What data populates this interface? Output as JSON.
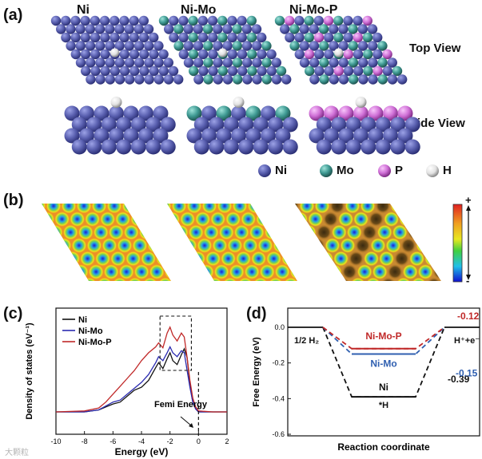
{
  "panel_labels": {
    "a": "(a)",
    "b": "(b)",
    "c": "(c)",
    "d": "(d)"
  },
  "panel_a": {
    "models": [
      "Ni",
      "Ni-Mo",
      "Ni-Mo-P"
    ],
    "top_view": "Top View",
    "side_view": "Side View",
    "legend": [
      {
        "label": "Ni",
        "color": "#5a60b0"
      },
      {
        "label": "Mo",
        "color": "#3f9a93"
      },
      {
        "label": "P",
        "color": "#cf6fd6"
      },
      {
        "label": "H",
        "color": "#e9e9e9"
      }
    ]
  },
  "panel_b": {
    "scale_plus": "+",
    "scale_minus": "-"
  },
  "watermark": "大颗粒",
  "chart_data": [
    {
      "type": "line",
      "title": "(c)",
      "xlabel": "Energy (eV)",
      "ylabel": "Density of states (eV⁻¹)",
      "xlim": [
        -10,
        2
      ],
      "x_ticks": [
        -10,
        -8,
        -6,
        -4,
        -2,
        0,
        2
      ],
      "annotation": "Femi Energy",
      "legend": [
        "Ni",
        "Ni-Mo",
        "Ni-Mo-P"
      ],
      "series": [
        {
          "name": "Ni",
          "color": "#111111",
          "x": [
            -10,
            -8,
            -7,
            -6.5,
            -6,
            -5.5,
            -5,
            -4.5,
            -4,
            -3.5,
            -3,
            -2.8,
            -2.5,
            -2.2,
            -2,
            -1.8,
            -1.5,
            -1.2,
            -1,
            -0.8,
            -0.6,
            -0.4,
            -0.2,
            0,
            1,
            2
          ],
          "y": [
            0,
            0,
            0.02,
            0.05,
            0.08,
            0.1,
            0.16,
            0.22,
            0.25,
            0.32,
            0.45,
            0.5,
            0.44,
            0.54,
            0.6,
            0.52,
            0.48,
            0.58,
            0.64,
            0.55,
            0.28,
            0.1,
            0.03,
            0,
            0,
            0
          ]
        },
        {
          "name": "Ni-Mo",
          "color": "#2a2ab0",
          "x": [
            -10,
            -8,
            -7,
            -6.5,
            -6,
            -5.5,
            -5,
            -4.5,
            -4,
            -3.5,
            -3,
            -2.8,
            -2.5,
            -2.2,
            -2,
            -1.8,
            -1.5,
            -1.2,
            -1,
            -0.8,
            -0.6,
            -0.4,
            -0.2,
            0,
            1,
            2
          ],
          "y": [
            0,
            0,
            0.02,
            0.06,
            0.1,
            0.12,
            0.18,
            0.24,
            0.3,
            0.38,
            0.5,
            0.56,
            0.52,
            0.6,
            0.66,
            0.6,
            0.56,
            0.62,
            0.6,
            0.42,
            0.25,
            0.1,
            0.03,
            0,
            0,
            0
          ]
        },
        {
          "name": "Ni-Mo-P",
          "color": "#c02828",
          "x": [
            -10,
            -8,
            -7,
            -6.5,
            -6,
            -5.5,
            -5,
            -4.5,
            -4,
            -3.5,
            -3,
            -2.8,
            -2.5,
            -2.2,
            -2,
            -1.8,
            -1.5,
            -1.2,
            -1,
            -0.8,
            -0.6,
            -0.4,
            -0.2,
            0,
            1,
            2
          ],
          "y": [
            0,
            0.01,
            0.04,
            0.1,
            0.18,
            0.26,
            0.34,
            0.42,
            0.52,
            0.6,
            0.66,
            0.7,
            0.65,
            0.8,
            0.86,
            0.78,
            0.72,
            0.8,
            0.76,
            0.55,
            0.32,
            0.14,
            0.05,
            0.01,
            0,
            0
          ]
        }
      ]
    },
    {
      "type": "line",
      "title": "(d)",
      "xlabel": "Reaction  coordinate",
      "ylabel": "Free Energy (eV)",
      "ylim": [
        -0.6,
        0
      ],
      "y_ticks": [
        "0.0",
        "-0.2",
        "-0.4",
        "-0.6"
      ],
      "y_tick_values": [
        0,
        -0.2,
        -0.4,
        -0.6
      ],
      "start_label": "1/2 H₂",
      "intermediate_label": "*H",
      "end_label": "H⁺+e⁻",
      "series": [
        {
          "name": "Ni",
          "color": "#111111",
          "value": -0.39,
          "value_label": "-0.39"
        },
        {
          "name": "Ni-Mo",
          "color": "#2f5fb0",
          "value": -0.15,
          "value_label": "-0.15"
        },
        {
          "name": "Ni-Mo-P",
          "color": "#c02828",
          "value": -0.12,
          "value_label": "-0.12"
        }
      ]
    }
  ]
}
